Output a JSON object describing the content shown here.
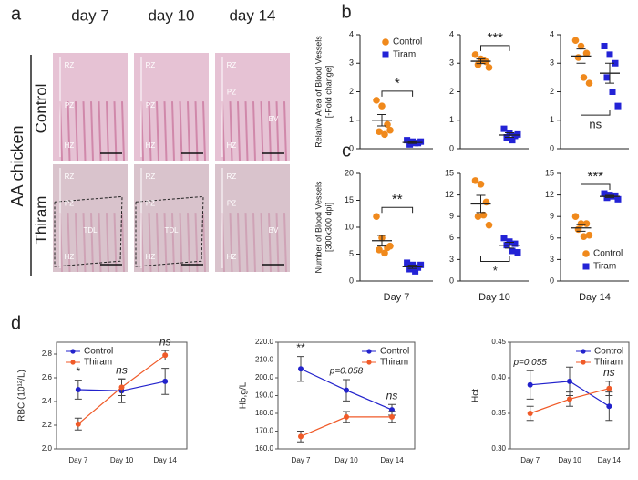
{
  "panel_a": {
    "label": "a",
    "columns": [
      "day 7",
      "day 10",
      "day 14"
    ],
    "group": "AA chicken",
    "rows": [
      "Control",
      "Thiram"
    ],
    "regions": [
      [
        "RZ",
        "PZ",
        "HZ"
      ],
      [
        "RZ",
        "PZ",
        "HZ"
      ],
      [
        "RZ",
        "PZ",
        "BV",
        "HZ"
      ],
      [
        "RZ",
        "PZ",
        "TDL",
        "HZ"
      ],
      [
        "RZ",
        "PZ",
        "TDL",
        "HZ"
      ],
      [
        "RZ",
        "PZ",
        "BV",
        "HZ"
      ]
    ]
  },
  "chart_data": [
    {
      "type": "strip",
      "panel_label": "b",
      "ylabel": [
        "Relative Area of Blood Vessels",
        "[-Fold change]"
      ],
      "ylim": [
        0,
        4
      ],
      "yticks": [
        0,
        1,
        2,
        3,
        4
      ],
      "legend": "upper-right",
      "series": [
        {
          "name": "Control",
          "color": "#f0891c",
          "marker": "circle",
          "values": [
            1.7,
            1.5,
            0.85,
            0.6,
            0.5,
            0.65
          ],
          "mean": 1.0,
          "error": 0.2
        },
        {
          "name": "Tiram",
          "color": "#2323d6",
          "marker": "square",
          "values": [
            0.3,
            0.25,
            0.2,
            0.15,
            0.2,
            0.25
          ],
          "mean": 0.22,
          "error": 0.03
        }
      ],
      "annotations": [
        {
          "text": "*",
          "bracket": "above"
        }
      ]
    },
    {
      "type": "strip",
      "ylim": [
        0,
        4
      ],
      "yticks": [
        0,
        1,
        2,
        3,
        4
      ],
      "series": [
        {
          "color": "#f0891c",
          "marker": "circle",
          "values": [
            3.3,
            3.15,
            3.05,
            2.95,
            3.1,
            2.85
          ],
          "mean": 3.07,
          "error": 0.08
        },
        {
          "color": "#2323d6",
          "marker": "square",
          "values": [
            0.7,
            0.55,
            0.45,
            0.4,
            0.3,
            0.5
          ],
          "mean": 0.48,
          "error": 0.08
        }
      ],
      "annotations": [
        {
          "text": "***",
          "bracket": "above"
        }
      ]
    },
    {
      "type": "strip",
      "ylim": [
        0,
        4
      ],
      "yticks": [
        0,
        1,
        2,
        3,
        4
      ],
      "series": [
        {
          "color": "#f0891c",
          "marker": "circle",
          "values": [
            3.8,
            3.6,
            3.35,
            3.2,
            2.5,
            2.3
          ],
          "mean": 3.25,
          "error": 0.25
        },
        {
          "color": "#2323d6",
          "marker": "square",
          "values": [
            3.6,
            3.3,
            3.0,
            2.5,
            2.0,
            1.5
          ],
          "mean": 2.65,
          "error": 0.35
        }
      ],
      "annotations": [
        {
          "text": "ns",
          "bracket": "below"
        }
      ]
    },
    {
      "type": "strip",
      "panel_label": "c",
      "ylabel": [
        "Number of Blood Vessels",
        "[300x300 dpi]"
      ],
      "xlabel": "Day 7",
      "ylim": [
        0,
        20
      ],
      "yticks": [
        0,
        5,
        10,
        15,
        20
      ],
      "series": [
        {
          "color": "#f0891c",
          "marker": "circle",
          "values": [
            12,
            8,
            6.2,
            5.8,
            5.2,
            6.5
          ],
          "mean": 7.5,
          "error": 1.0
        },
        {
          "color": "#2323d6",
          "marker": "square",
          "values": [
            3.4,
            3,
            2.5,
            2.2,
            1.8,
            3
          ],
          "mean": 2.65,
          "error": 0.3
        }
      ],
      "annotations": [
        {
          "text": "**",
          "bracket": "above"
        }
      ]
    },
    {
      "type": "strip",
      "xlabel": "Day 10",
      "ylim": [
        0,
        15
      ],
      "yticks": [
        0,
        3,
        6,
        9,
        12,
        15
      ],
      "series": [
        {
          "color": "#f0891c",
          "marker": "circle",
          "values": [
            14,
            13.5,
            11,
            9,
            9.2,
            7.8
          ],
          "mean": 10.75,
          "error": 1.2
        },
        {
          "color": "#2323d6",
          "marker": "square",
          "values": [
            6,
            5.5,
            5.2,
            5,
            4.2,
            4
          ],
          "mean": 5.0,
          "error": 0.4
        }
      ],
      "annotations": [
        {
          "text": "*",
          "bracket": "below"
        }
      ]
    },
    {
      "type": "strip",
      "xlabel": "Day 14",
      "ylim": [
        0,
        15
      ],
      "yticks": [
        0,
        3,
        6,
        9,
        12,
        15
      ],
      "legend": "lower-right",
      "series": [
        {
          "name": "Control",
          "color": "#f0891c",
          "marker": "circle",
          "values": [
            9,
            8,
            8,
            7.2,
            6.2,
            6.4
          ],
          "mean": 7.4,
          "error": 0.45
        },
        {
          "name": "Tiram",
          "color": "#2323d6",
          "marker": "square",
          "values": [
            12.2,
            12,
            11.9,
            11.6,
            11.8,
            11.4
          ],
          "mean": 11.8,
          "error": 0.15
        }
      ],
      "annotations": [
        {
          "text": "***",
          "bracket": "above"
        }
      ]
    },
    {
      "type": "line",
      "panel_label": "d",
      "ylabel": "RBC (10¹²/L)",
      "categories": [
        "Day 7",
        "Day 10",
        "Day 14"
      ],
      "ylim": [
        2.0,
        2.9
      ],
      "yticks": [
        {
          "value": 2.0,
          "label": "2.0"
        },
        2.2,
        2.4,
        2.6,
        2.8
      ],
      "legend": "upper-left",
      "series": [
        {
          "name": "Control",
          "color": "#2222cc",
          "values": [
            2.5,
            2.49,
            2.57
          ],
          "error": [
            0.08,
            0.1,
            0.11
          ]
        },
        {
          "name": "Thiram",
          "color": "#f05a28",
          "values": [
            2.21,
            2.52,
            2.79
          ],
          "error": [
            0.05,
            0.07,
            0.04
          ]
        }
      ],
      "annotations": [
        "*",
        "ns",
        "ns"
      ]
    },
    {
      "type": "line",
      "ylabel": "Hb,g/L",
      "categories": [
        "Day 7",
        "Day 10",
        "Day 14"
      ],
      "ylim": [
        160,
        220
      ],
      "yticks": [
        {
          "value": 160,
          "label": "160.0"
        },
        {
          "value": 170,
          "label": "170.0"
        },
        {
          "value": 180,
          "label": "180.0"
        },
        {
          "value": 190,
          "label": "190.0"
        },
        {
          "value": 200,
          "label": "200.0"
        },
        {
          "value": 210,
          "label": "210.0"
        },
        {
          "value": 220,
          "label": "220.0"
        }
      ],
      "legend": "upper-right",
      "series": [
        {
          "name": "Control",
          "color": "#2222cc",
          "values": [
            205,
            193,
            182
          ],
          "error": [
            7,
            6,
            3
          ]
        },
        {
          "name": "Thiram",
          "color": "#f05a28",
          "values": [
            167,
            178,
            178
          ],
          "error": [
            3,
            3,
            3
          ]
        }
      ],
      "annotations": [
        "**",
        "p=0.058",
        "ns"
      ]
    },
    {
      "type": "line",
      "ylabel": "Hct",
      "categories": [
        "Day 7",
        "Day 10",
        "Day 14"
      ],
      "ylim": [
        0.3,
        0.45
      ],
      "yticks": [
        {
          "value": 0.3,
          "label": "0.30"
        },
        0.35,
        {
          "value": 0.4,
          "label": "0.40"
        },
        0.45
      ],
      "legend": "upper-right",
      "series": [
        {
          "name": "Control",
          "color": "#2222cc",
          "values": [
            0.39,
            0.395,
            0.36
          ],
          "error": [
            0.02,
            0.02,
            0.02
          ]
        },
        {
          "name": "Thiram",
          "color": "#f05a28",
          "values": [
            0.35,
            0.37,
            0.385
          ],
          "error": [
            0.01,
            0.01,
            0.01
          ]
        }
      ],
      "annotations": [
        "p=0.055",
        null,
        "ns"
      ]
    }
  ]
}
